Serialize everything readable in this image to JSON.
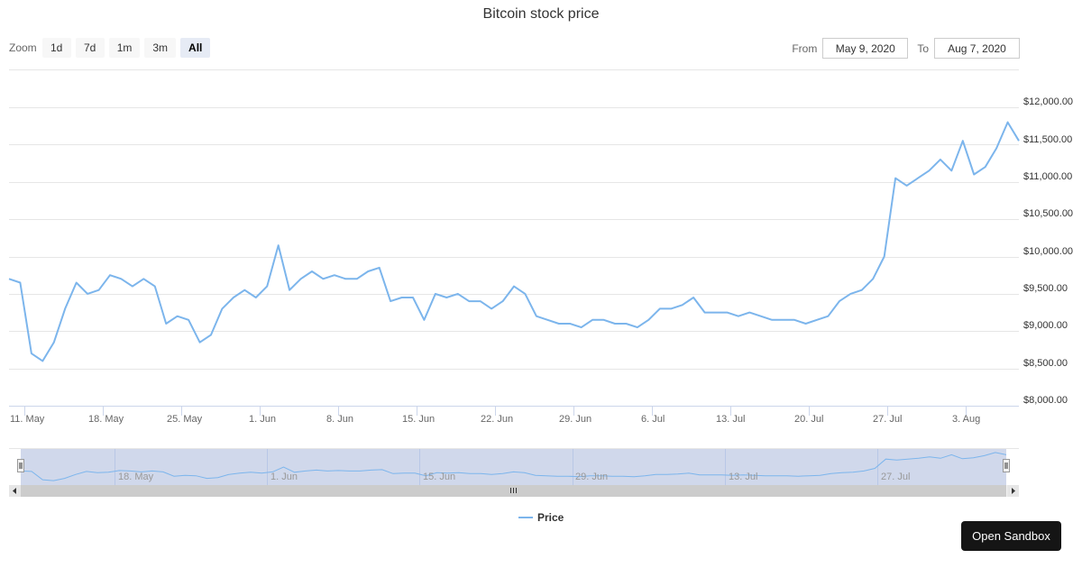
{
  "title": "Bitcoin stock price",
  "range_selector": {
    "zoom_label": "Zoom",
    "buttons": [
      {
        "label": "1d",
        "active": false
      },
      {
        "label": "7d",
        "active": false
      },
      {
        "label": "1m",
        "active": false
      },
      {
        "label": "3m",
        "active": false
      },
      {
        "label": "All",
        "active": true
      }
    ],
    "from_label": "From",
    "from_value": "May 9, 2020",
    "to_label": "To",
    "to_value": "Aug 7, 2020"
  },
  "y_axis": {
    "labels": [
      "$12,000.00",
      "$11,500.00",
      "$11,000.00",
      "$10,500.00",
      "$10,000.00",
      "$9,500.00",
      "$9,000.00",
      "$8,500.00",
      "$8,000.00"
    ]
  },
  "x_axis": {
    "labels": [
      "11. May",
      "18. May",
      "25. May",
      "1. Jun",
      "8. Jun",
      "15. Jun",
      "22. Jun",
      "29. Jun",
      "6. Jul",
      "13. Jul",
      "20. Jul",
      "27. Jul",
      "3. Aug"
    ]
  },
  "navigator": {
    "labels": [
      "18. May",
      "1. Jun",
      "15. Jun",
      "29. Jun",
      "13. Jul",
      "27. Jul"
    ],
    "scrollbar_grip": "III"
  },
  "legend": {
    "series_name": "Price",
    "color": "#7cb5ec"
  },
  "open_sandbox_label": "Open Sandbox",
  "colors": {
    "line": "#7cb5ec",
    "navigator_mask": "#cdd6ea",
    "scrollbar": "#cccccc"
  },
  "chart_data": {
    "type": "line",
    "title": "Bitcoin stock price",
    "xlabel": "",
    "ylabel": "",
    "ylim": [
      8000,
      12000
    ],
    "grid": true,
    "legend_position": "bottom",
    "x": [
      "May 9",
      "May 10",
      "May 11",
      "May 12",
      "May 13",
      "May 14",
      "May 15",
      "May 16",
      "May 17",
      "May 18",
      "May 19",
      "May 20",
      "May 21",
      "May 22",
      "May 23",
      "May 24",
      "May 25",
      "May 26",
      "May 27",
      "May 28",
      "May 29",
      "May 30",
      "May 31",
      "Jun 1",
      "Jun 2",
      "Jun 3",
      "Jun 4",
      "Jun 5",
      "Jun 6",
      "Jun 7",
      "Jun 8",
      "Jun 9",
      "Jun 10",
      "Jun 11",
      "Jun 12",
      "Jun 13",
      "Jun 14",
      "Jun 15",
      "Jun 16",
      "Jun 17",
      "Jun 18",
      "Jun 19",
      "Jun 20",
      "Jun 21",
      "Jun 22",
      "Jun 23",
      "Jun 24",
      "Jun 25",
      "Jun 26",
      "Jun 27",
      "Jun 28",
      "Jun 29",
      "Jun 30",
      "Jul 1",
      "Jul 2",
      "Jul 3",
      "Jul 4",
      "Jul 5",
      "Jul 6",
      "Jul 7",
      "Jul 8",
      "Jul 9",
      "Jul 10",
      "Jul 11",
      "Jul 12",
      "Jul 13",
      "Jul 14",
      "Jul 15",
      "Jul 16",
      "Jul 17",
      "Jul 18",
      "Jul 19",
      "Jul 20",
      "Jul 21",
      "Jul 22",
      "Jul 23",
      "Jul 24",
      "Jul 25",
      "Jul 26",
      "Jul 27",
      "Jul 28",
      "Jul 29",
      "Jul 30",
      "Jul 31",
      "Aug 1",
      "Aug 2",
      "Aug 3",
      "Aug 4",
      "Aug 5",
      "Aug 6",
      "Aug 7"
    ],
    "series": [
      {
        "name": "Price",
        "values": [
          9700,
          9650,
          8700,
          8600,
          8850,
          9300,
          9650,
          9500,
          9550,
          9750,
          9700,
          9600,
          9700,
          9600,
          9100,
          9200,
          9150,
          8850,
          8950,
          9300,
          9450,
          9550,
          9450,
          9600,
          10150,
          9550,
          9700,
          9800,
          9700,
          9750,
          9700,
          9700,
          9800,
          9850,
          9400,
          9450,
          9450,
          9150,
          9500,
          9450,
          9500,
          9400,
          9400,
          9300,
          9400,
          9600,
          9500,
          9200,
          9150,
          9100,
          9100,
          9050,
          9150,
          9150,
          9100,
          9100,
          9050,
          9150,
          9300,
          9300,
          9350,
          9450,
          9250,
          9250,
          9250,
          9200,
          9250,
          9200,
          9150,
          9150,
          9150,
          9100,
          9150,
          9200,
          9400,
          9500,
          9550,
          9700,
          10000,
          11050,
          10950,
          11050,
          11150,
          11300,
          11150,
          11550,
          11100,
          11200,
          11450,
          11800,
          11550
        ]
      }
    ]
  }
}
